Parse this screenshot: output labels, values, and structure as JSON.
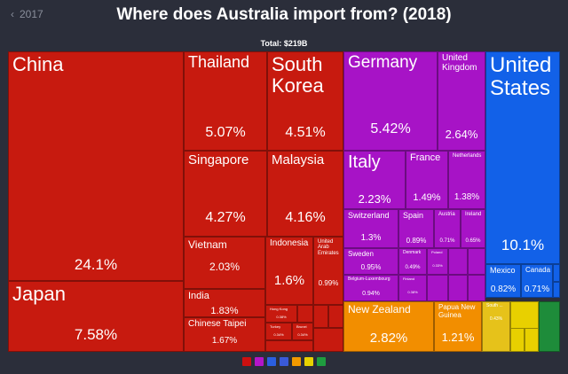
{
  "header": {
    "back_label": "2017",
    "title": "Where does Australia import from? (2018)",
    "total": "Total: $219B"
  },
  "colors": {
    "asia": "#c71a0f",
    "europe": "#a713c6",
    "north_america": "#1261e8",
    "oceania": "#f28e00",
    "africa": "#3b4bd6",
    "south_america": "#1e8c3a"
  },
  "legend": [
    {
      "icon": "asia-icon",
      "color": "#cc1010"
    },
    {
      "icon": "europe-icon",
      "color": "#b415c9"
    },
    {
      "icon": "north-america-icon",
      "color": "#2b5fe0"
    },
    {
      "icon": "oceania-icon",
      "color": "#3a5ad9"
    },
    {
      "icon": "south-america-icon",
      "color": "#f39a00"
    },
    {
      "icon": "africa-icon",
      "color": "#e8d200"
    },
    {
      "icon": "antarctica-icon",
      "color": "#1f9c3f"
    }
  ],
  "chart_data": {
    "type": "treemap",
    "title": "Where does Australia import from? (2018)",
    "total": "$219B",
    "items": [
      {
        "name": "China",
        "value": 24.1,
        "label": "24.1%",
        "region": "Asia"
      },
      {
        "name": "Japan",
        "value": 7.58,
        "label": "7.58%",
        "region": "Asia"
      },
      {
        "name": "Thailand",
        "value": 5.07,
        "label": "5.07%",
        "region": "Asia"
      },
      {
        "name": "South Korea",
        "value": 4.51,
        "label": "4.51%",
        "region": "Asia"
      },
      {
        "name": "Singapore",
        "value": 4.27,
        "label": "4.27%",
        "region": "Asia"
      },
      {
        "name": "Malaysia",
        "value": 4.16,
        "label": "4.16%",
        "region": "Asia"
      },
      {
        "name": "Vietnam",
        "value": 2.03,
        "label": "2.03%",
        "region": "Asia"
      },
      {
        "name": "Indonesia",
        "value": 1.6,
        "label": "1.6%",
        "region": "Asia"
      },
      {
        "name": "United Arab Emirates",
        "value": 0.99,
        "label": "0.99%",
        "region": "Asia"
      },
      {
        "name": "India",
        "value": 1.83,
        "label": "1.83%",
        "region": "Asia"
      },
      {
        "name": "Chinese Taipei",
        "value": 1.67,
        "label": "1.67%",
        "region": "Asia"
      },
      {
        "name": "Hong Kong",
        "value": 0.38,
        "label": "0.38%",
        "region": "Asia"
      },
      {
        "name": "Turkey",
        "value": 0.34,
        "label": "0.34%",
        "region": "Asia"
      },
      {
        "name": "Brunei",
        "value": 0.34,
        "label": "0.34%",
        "region": "Asia"
      },
      {
        "name": "Germany",
        "value": 5.42,
        "label": "5.42%",
        "region": "Europe"
      },
      {
        "name": "United Kingdom",
        "value": 2.64,
        "label": "2.64%",
        "region": "Europe"
      },
      {
        "name": "Italy",
        "value": 2.23,
        "label": "2.23%",
        "region": "Europe"
      },
      {
        "name": "France",
        "value": 1.49,
        "label": "1.49%",
        "region": "Europe"
      },
      {
        "name": "Netherlands",
        "value": 1.38,
        "label": "1.38%",
        "region": "Europe"
      },
      {
        "name": "Switzerland",
        "value": 1.3,
        "label": "1.3%",
        "region": "Europe"
      },
      {
        "name": "Spain",
        "value": 0.89,
        "label": "0.89%",
        "region": "Europe"
      },
      {
        "name": "Austria",
        "value": 0.71,
        "label": "0.71%",
        "region": "Europe"
      },
      {
        "name": "Ireland",
        "value": 0.65,
        "label": "0.65%",
        "region": "Europe"
      },
      {
        "name": "Sweden",
        "value": 0.95,
        "label": "0.95%",
        "region": "Europe"
      },
      {
        "name": "Belgium-Luxembourg",
        "value": 0.94,
        "label": "0.94%",
        "region": "Europe"
      },
      {
        "name": "Denmark",
        "value": 0.49,
        "label": "0.49%",
        "region": "Europe"
      },
      {
        "name": "Poland",
        "value": 0.33,
        "label": "0.33%",
        "region": "Europe"
      },
      {
        "name": "Finland",
        "value": 0.38,
        "label": "0.38%",
        "region": "Europe"
      },
      {
        "name": "United States",
        "value": 10.1,
        "label": "10.1%",
        "region": "North America"
      },
      {
        "name": "Mexico",
        "value": 0.82,
        "label": "0.82%",
        "region": "North America"
      },
      {
        "name": "Canada",
        "value": 0.71,
        "label": "0.71%",
        "region": "North America"
      },
      {
        "name": "New Zealand",
        "value": 2.82,
        "label": "2.82%",
        "region": "Oceania"
      },
      {
        "name": "Papua New Guinea",
        "value": 1.21,
        "label": "1.21%",
        "region": "Oceania"
      },
      {
        "name": "South ...",
        "value": 0.43,
        "label": "0.43%",
        "region": "Africa"
      }
    ]
  }
}
